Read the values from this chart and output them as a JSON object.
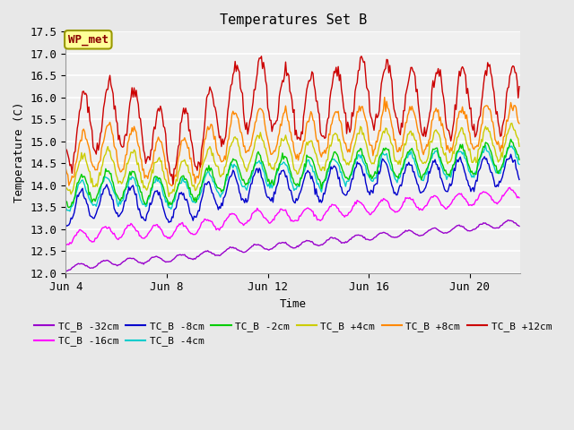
{
  "title": "Temperatures Set B",
  "xlabel": "Time",
  "ylabel": "Temperature (C)",
  "ylim": [
    12.0,
    17.5
  ],
  "annotation_text": "WP_met",
  "annotation_color": "#8B0000",
  "annotation_bg": "#FFFF99",
  "background_color": "#E8E8E8",
  "plot_bg": "#F0F0F0",
  "series": [
    {
      "label": "TC_B -32cm",
      "color": "#9900CC",
      "base": 12.1,
      "daily_amp": 0.07,
      "trend": 0.058,
      "weather_amp": 0.05
    },
    {
      "label": "TC_B -16cm",
      "color": "#FF00FF",
      "base": 12.75,
      "daily_amp": 0.15,
      "trend": 0.058,
      "weather_amp": 0.12
    },
    {
      "label": "TC_B -8cm",
      "color": "#0000CC",
      "base": 13.35,
      "daily_amp": 0.35,
      "trend": 0.056,
      "weather_amp": 0.3
    },
    {
      "label": "TC_B -4cm",
      "color": "#00CCCC",
      "base": 13.65,
      "daily_amp": 0.3,
      "trend": 0.053,
      "weather_amp": 0.25
    },
    {
      "label": "TC_B -2cm",
      "color": "#00CC00",
      "base": 13.75,
      "daily_amp": 0.32,
      "trend": 0.052,
      "weather_amp": 0.28
    },
    {
      "label": "TC_B +4cm",
      "color": "#CCCC00",
      "base": 14.1,
      "daily_amp": 0.38,
      "trend": 0.05,
      "weather_amp": 0.4
    },
    {
      "label": "TC_B +8cm",
      "color": "#FF8800",
      "base": 14.45,
      "daily_amp": 0.5,
      "trend": 0.052,
      "weather_amp": 0.55
    },
    {
      "label": "TC_B +12cm",
      "color": "#CC0000",
      "base": 14.98,
      "daily_amp": 0.75,
      "trend": 0.058,
      "weather_amp": 0.9
    }
  ],
  "x_ticks_pos": [
    0,
    96,
    192,
    288,
    384
  ],
  "x_ticks_labels": [
    "Jun 4",
    "Jun 8",
    "Jun 12",
    "Jun 16",
    "Jun 20"
  ],
  "n_hours": 432
}
